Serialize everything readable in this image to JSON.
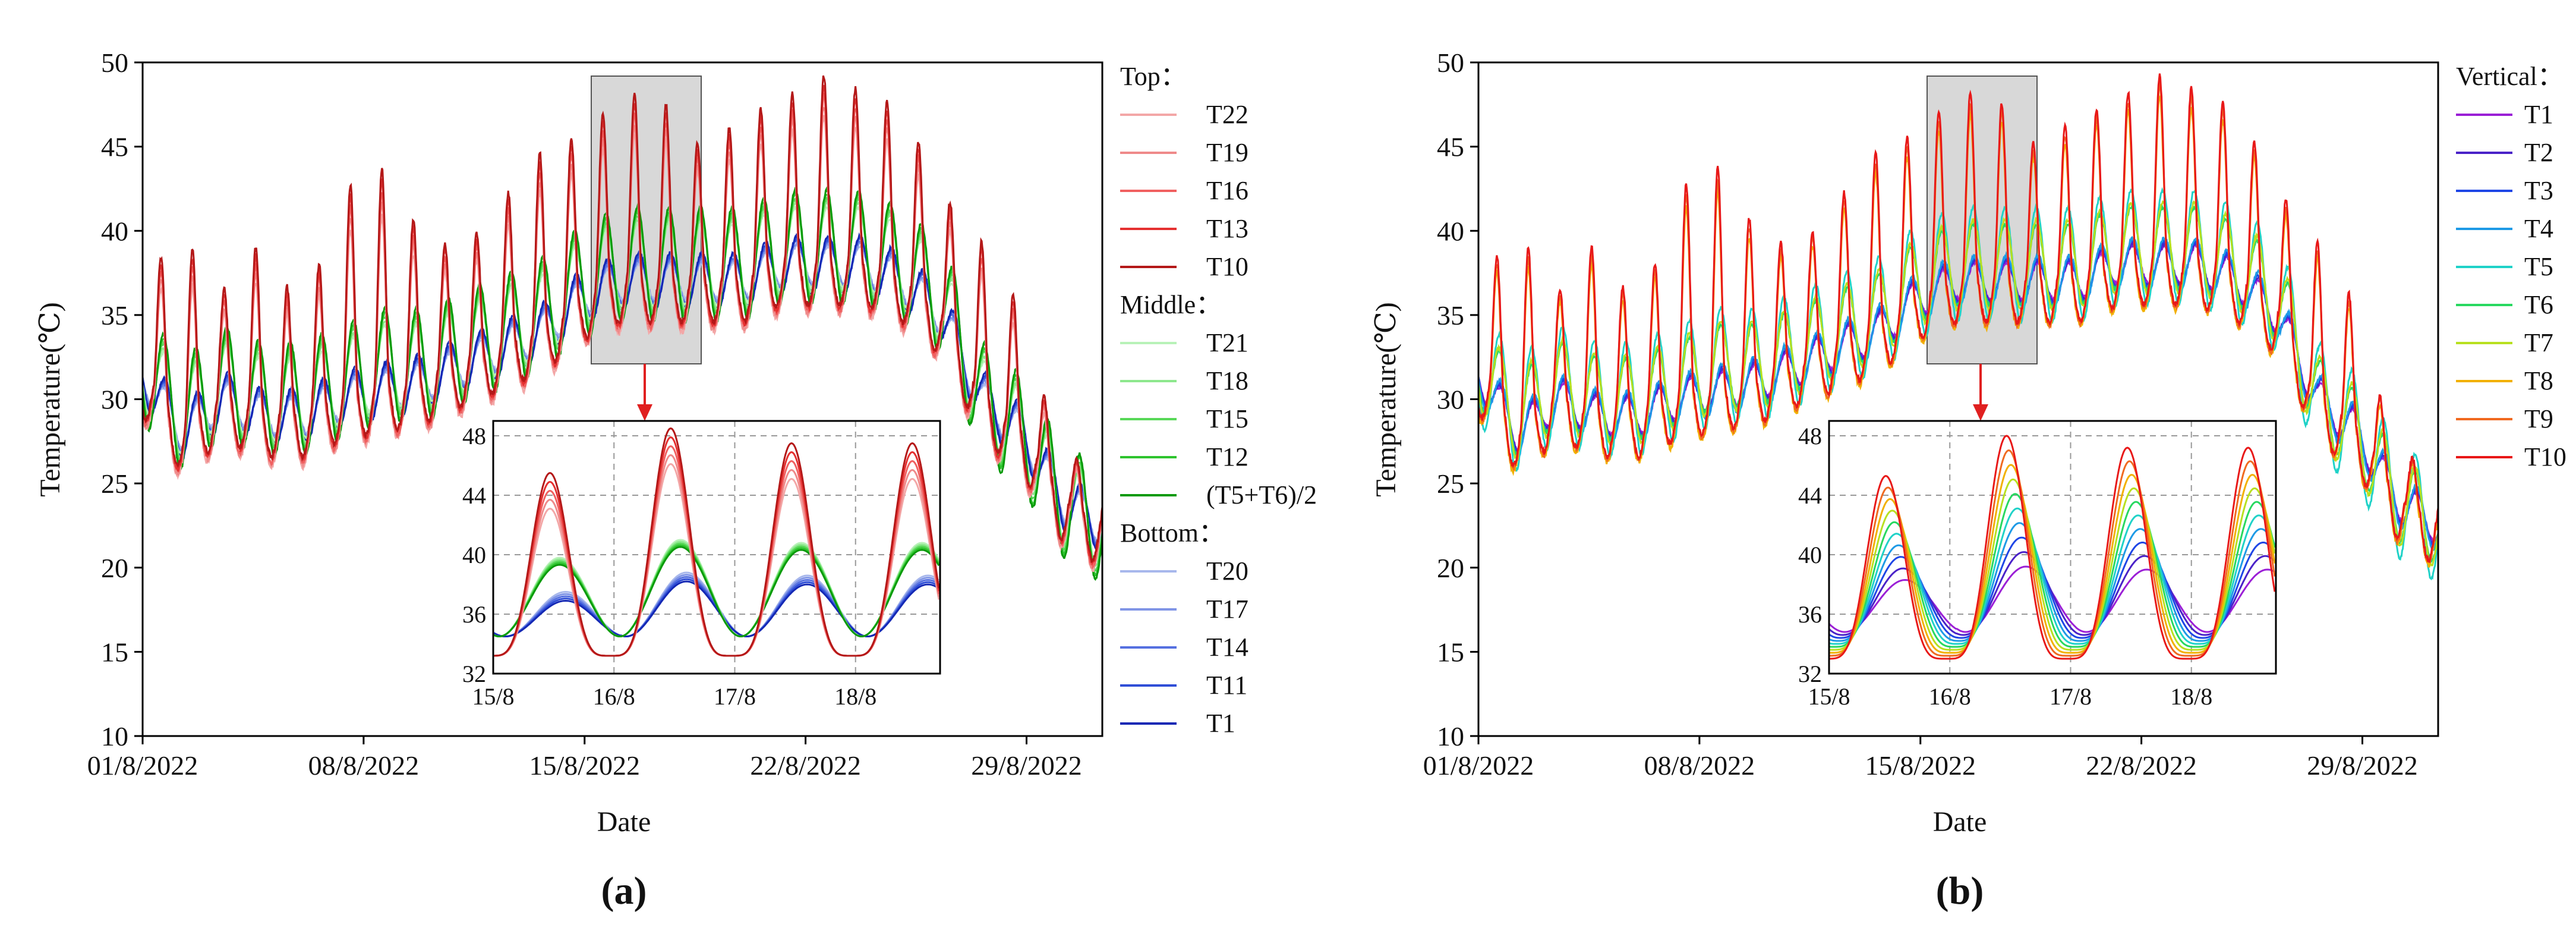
{
  "colors": {
    "top": [
      "#f3a7a7",
      "#ef8a8a",
      "#f06060",
      "#e53030",
      "#b41818"
    ],
    "middle": [
      "#b8f2b8",
      "#8ee88e",
      "#58d858",
      "#2ec42e",
      "#0a9a0a"
    ],
    "bottom": [
      "#a8b8ec",
      "#8095e6",
      "#5570e0",
      "#2f4ed6",
      "#1428b4"
    ],
    "vertical": [
      "#9b1fd6",
      "#4a22c8",
      "#1f46e6",
      "#1e9ae6",
      "#20d2c8",
      "#28d860",
      "#b8e020",
      "#f2b000",
      "#f06a20",
      "#e81818"
    ],
    "highlight_box": "#d8d8d8",
    "arrow": "#e02020"
  },
  "chart_data": [
    {
      "type": "line",
      "panel_label": "(a)",
      "xlabel": "Date",
      "ylabel": "Temperature(℃)",
      "ylim": [
        10,
        50
      ],
      "yticks": [
        "10",
        "15",
        "20",
        "25",
        "30",
        "35",
        "40",
        "45",
        "50"
      ],
      "xlim": [
        0,
        30.4
      ],
      "xticks": [
        {
          "x": 0,
          "label": "01/8/2022"
        },
        {
          "x": 7,
          "label": "08/8/2022"
        },
        {
          "x": 14,
          "label": "15/8/2022"
        },
        {
          "x": 21,
          "label": "22/8/2022"
        },
        {
          "x": 28,
          "label": "29/8/2022"
        }
      ],
      "legend": [
        {
          "group": "Top：",
          "items": [
            "T22",
            "T19",
            "T16",
            "T13",
            "T10"
          ]
        },
        {
          "group": "Middle：",
          "items": [
            "T21",
            "T18",
            "T15",
            "T12",
            "(T5+T6)/2"
          ]
        },
        {
          "group": "Bottom：",
          "items": [
            "T20",
            "T17",
            "T14",
            "T11",
            "T1"
          ]
        }
      ],
      "series_summary": {
        "top_daily_max": [
          37.5,
          40,
          36.5,
          39.8,
          35,
          42.8,
          44,
          40,
          39,
          42,
          45,
          46,
          48.5,
          48,
          45,
          47,
          48,
          49.5,
          48.5,
          47.5,
          42.5,
          39.5,
          35.5,
          26,
          27.5
        ],
        "middle_daily_mean": [
          32,
          29,
          31,
          30,
          30,
          31,
          32,
          32,
          33,
          34,
          35,
          37,
          38,
          38,
          38,
          38,
          39,
          39,
          39,
          38,
          36,
          30,
          28,
          24,
          22.5
        ],
        "bottom_daily_mean": [
          31.5,
          28,
          30,
          29,
          29,
          30,
          30.5,
          31,
          32,
          33,
          34,
          36,
          37,
          37,
          37,
          37,
          38,
          38,
          38,
          37,
          35,
          30,
          28,
          24,
          22.5
        ]
      },
      "highlight_range": [
        14,
        17.3
      ],
      "inset": {
        "xlim": [
          15,
          18.7
        ],
        "ylim": [
          32,
          49
        ],
        "xticks": [
          "15/8",
          "16/8",
          "17/8",
          "18/8"
        ],
        "yticks": [
          "32",
          "36",
          "40",
          "44",
          "48"
        ],
        "top_peaks": [
          45.5,
          48.5,
          47.5
        ],
        "middle_peaks": [
          39.8,
          41,
          40.8
        ],
        "bottom_peaks": [
          37.5,
          38.8,
          38.6
        ],
        "troughs": [
          33,
          34,
          34.5
        ]
      }
    },
    {
      "type": "line",
      "panel_label": "(b)",
      "xlabel": "Date",
      "ylabel": "Temperature(℃)",
      "ylim": [
        10,
        50
      ],
      "yticks": [
        "10",
        "15",
        "20",
        "25",
        "30",
        "35",
        "40",
        "45",
        "50"
      ],
      "xlim": [
        0,
        30.4
      ],
      "xticks": [
        {
          "x": 0,
          "label": "01/8/2022"
        },
        {
          "x": 7,
          "label": "08/8/2022"
        },
        {
          "x": 14,
          "label": "15/8/2022"
        },
        {
          "x": 21,
          "label": "22/8/2022"
        },
        {
          "x": 28,
          "label": "29/8/2022"
        }
      ],
      "legend": [
        {
          "group": "Vertical：",
          "items": [
            "T1",
            "T2",
            "T3",
            "T4",
            "T5",
            "T6",
            "T7",
            "T8",
            "T9",
            "T10"
          ]
        }
      ],
      "highlight_range": [
        14,
        17.3
      ],
      "inset": {
        "xlim": [
          15,
          18.7
        ],
        "ylim": [
          32,
          49
        ],
        "xticks": [
          "15/8",
          "16/8",
          "17/8",
          "18/8"
        ],
        "yticks": [
          "32",
          "36",
          "40",
          "44",
          "48"
        ],
        "t10_peaks": [
          45.3,
          48,
          47.2
        ],
        "t1_peaks": [
          38.3,
          39.2,
          39
        ]
      }
    }
  ]
}
